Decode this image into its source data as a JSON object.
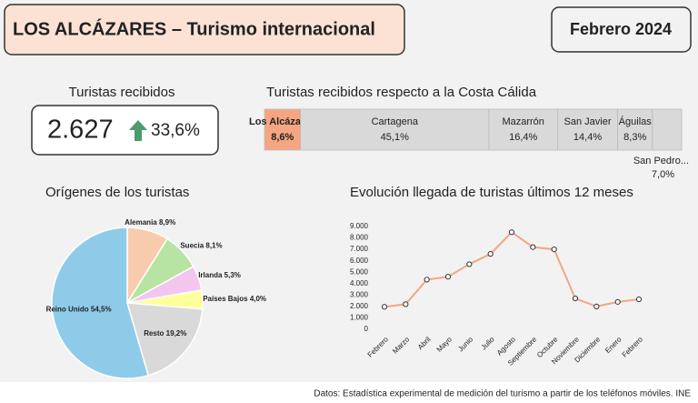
{
  "header": {
    "title": "LOS ALCÁZARES – Turismo internacional",
    "period": "Febrero 2024"
  },
  "kpi": {
    "title": "Turistas recibidos",
    "value": "2.627",
    "change": "33,6%"
  },
  "chart_data": [
    {
      "type": "share-bar",
      "title": "Turistas recibidos respecto a la Costa Cálida",
      "categories": [
        "Los Alcázares",
        "Cartagena",
        "Mazarrón",
        "San Javier",
        "Águilas",
        "San Pedro..."
      ],
      "values": [
        8.6,
        45.1,
        16.4,
        14.4,
        8.3,
        7.0
      ],
      "value_labels": [
        "8,6%",
        "45,1%",
        "16,4%",
        "14,4%",
        "8,3%",
        "7,0%"
      ],
      "colors": [
        "#f4a582",
        "#d9d9d9",
        "#d9d9d9",
        "#d9d9d9",
        "#d9d9d9",
        "#d9d9d9"
      ]
    },
    {
      "type": "pie",
      "title": "Orígenes de los turistas",
      "categories": [
        "Alemania",
        "Suecia",
        "Irlanda",
        "Países Bajos",
        "Resto",
        "Reino Unido"
      ],
      "values": [
        8.9,
        8.1,
        5.3,
        4.0,
        19.2,
        54.5
      ],
      "value_labels": [
        "8,9%",
        "8,1%",
        "5,3%",
        "4,0%",
        "19,2%",
        "54,5%"
      ],
      "colors": [
        "#f8cbad",
        "#b7e4a3",
        "#f3c6ef",
        "#ffff99",
        "#d9d9d9",
        "#8ecbe9"
      ]
    },
    {
      "type": "line",
      "title": "Evolución llegada de turistas últimos 12 meses",
      "categories": [
        "Febrero",
        "Marzo",
        "Abril",
        "Mayo",
        "Junio",
        "Julio",
        "Agosto",
        "Septiembre",
        "Octubre",
        "Noviembre",
        "Diciembre",
        "Enero",
        "Febrero"
      ],
      "values": [
        1970,
        2200,
        4350,
        4600,
        5700,
        6600,
        8500,
        7200,
        7000,
        2700,
        2000,
        2400,
        2627
      ],
      "color": "#f4a582",
      "ylim": [
        0,
        9000
      ],
      "yticks": [
        0,
        {
          "value": 1000,
          "label": "1.000"
        },
        {
          "value": 2000,
          "label": "2.000"
        },
        {
          "value": 3000,
          "label": "3.000"
        },
        {
          "value": 4000,
          "label": "4.000"
        },
        {
          "value": 5000,
          "label": "5.000"
        },
        {
          "value": 6000,
          "label": "6.000"
        },
        {
          "value": 7000,
          "label": "7.000"
        },
        {
          "value": 8000,
          "label": "8.000"
        },
        {
          "value": 9000,
          "label": "9.000"
        }
      ],
      "grid": false
    }
  ],
  "footer": {
    "source": "Datos: Estadística experimental de medición del turismo a partir de los teléfonos móviles. INE"
  }
}
